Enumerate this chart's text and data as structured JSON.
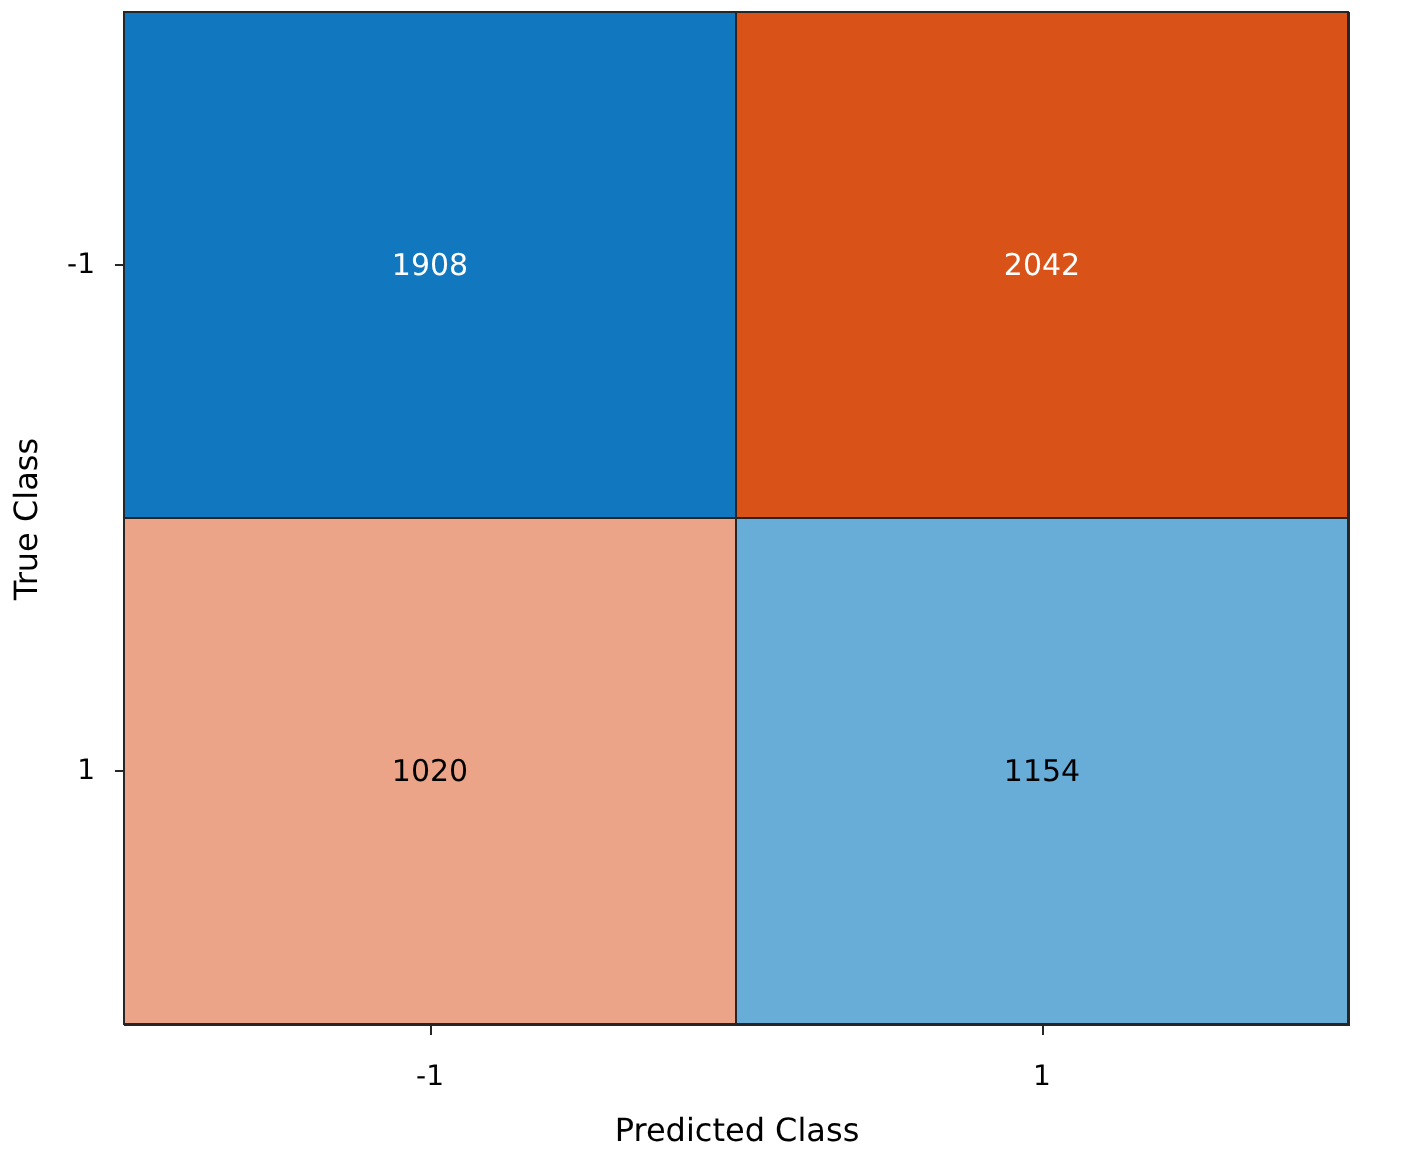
{
  "chart_data": {
    "type": "heatmap",
    "xlabel": "Predicted Class",
    "ylabel": "True Class",
    "categories": [
      "-1",
      "1"
    ],
    "y_categories": [
      "-1",
      "1"
    ],
    "cells": [
      [
        1908,
        2042
      ],
      [
        1020,
        1154
      ]
    ],
    "colors": [
      [
        "#1178c0",
        "#d95319"
      ],
      [
        "#eba487",
        "#68acd8"
      ]
    ],
    "data_labels": true
  }
}
